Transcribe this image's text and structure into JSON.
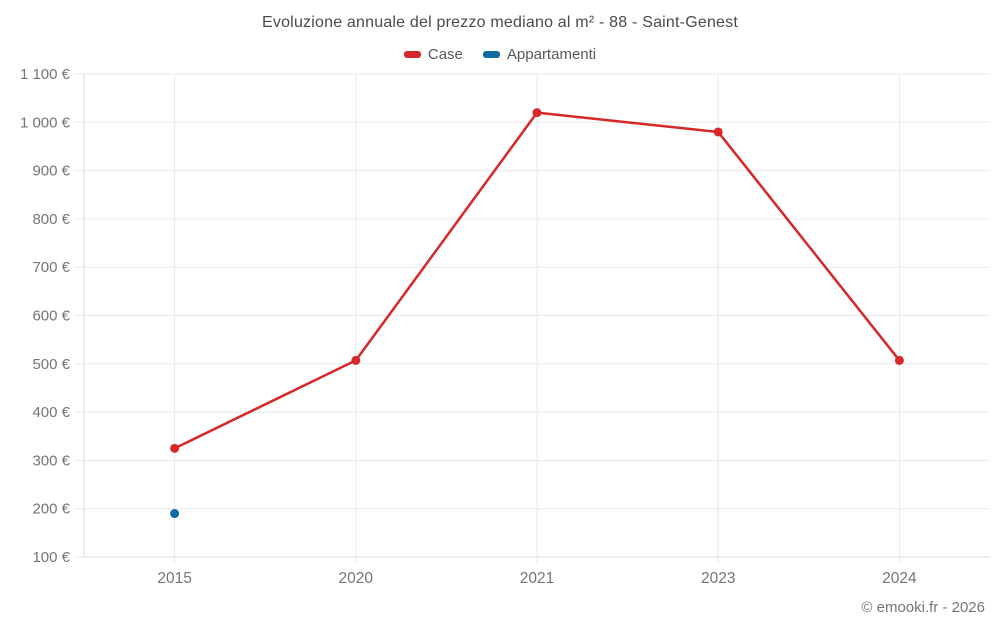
{
  "title": "Evoluzione annuale del prezzo mediano al m² - 88 - Saint-Genest",
  "attribution": "© emooki.fr - 2026",
  "chart_data": {
    "type": "line",
    "title": "Evoluzione annuale del prezzo mediano al m² - 88 - Saint-Genest",
    "categories": [
      "2015",
      "2020",
      "2021",
      "2023",
      "2024"
    ],
    "series": [
      {
        "name": "Case",
        "color": "#d62828",
        "values": [
          325,
          507,
          1020,
          980,
          507
        ]
      },
      {
        "name": "Appartamenti",
        "color": "#0f6aa1",
        "values": [
          190,
          null,
          null,
          null,
          null
        ]
      }
    ],
    "xlabel": "",
    "ylabel": "",
    "ylim": [
      100,
      1100
    ],
    "y_ticks": [
      100,
      200,
      300,
      400,
      500,
      600,
      700,
      800,
      900,
      1000,
      1100
    ],
    "y_tick_suffix": " €",
    "grid": true,
    "grid_color": "#e9e9e9",
    "axis_color": "#d9d9d9",
    "legend_position": "top",
    "marker_style": "circle"
  }
}
